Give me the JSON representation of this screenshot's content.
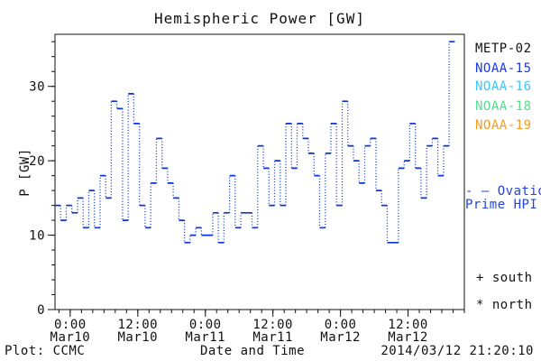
{
  "title": "Hemispheric Power [GW]",
  "footer": {
    "left": "Plot: CCMC",
    "center": "Date and Time",
    "right": "2014/03/12 21:20:10"
  },
  "legend": {
    "satellites": [
      {
        "label": "METP-02",
        "color": "#111111"
      },
      {
        "label": "NOAA-15",
        "color": "#1c3ae8"
      },
      {
        "label": "NOAA-16",
        "color": "#3ec6fa"
      },
      {
        "label": "NOAA-18",
        "color": "#58dd90"
      },
      {
        "label": "NOAA-19",
        "color": "#f59b1e"
      }
    ],
    "model": {
      "dash": "- —",
      "line1": "Ovation",
      "line2": "Prime HPI",
      "color": "#2244e0"
    },
    "markers": [
      {
        "symbol": "+",
        "label": "south"
      },
      {
        "symbol": "*",
        "label": "north"
      }
    ]
  },
  "chart_data": {
    "type": "line",
    "subtype": "step",
    "title": "Hemispheric Power [GW]",
    "xlabel": "Date and Time",
    "ylabel": "P [GW]",
    "ylim": [
      0,
      37
    ],
    "y_major_ticks": [
      0,
      10,
      20,
      30
    ],
    "y_minor_step": 2,
    "x_unit": "hours from 2014-03-10 00:00",
    "xlim": [
      -2.7,
      70
    ],
    "x_major_ticks": [
      {
        "hour": 0,
        "time": "0:00",
        "date": "Mar10"
      },
      {
        "hour": 12,
        "time": "12:00",
        "date": "Mar10"
      },
      {
        "hour": 24,
        "time": "0:00",
        "date": "Mar11"
      },
      {
        "hour": 36,
        "time": "12:00",
        "date": "Mar11"
      },
      {
        "hour": 48,
        "time": "0:00",
        "date": "Mar12"
      },
      {
        "hour": 60,
        "time": "12:00",
        "date": "Mar12"
      }
    ],
    "x_minor_step_hours": 2,
    "grid": false,
    "legend_position": "right",
    "axis_color": "#111111",
    "series": [
      {
        "name": "Ovation Prime HPI",
        "color": "#0a34d4",
        "step_start_hour": -2.7,
        "step_hours": 1,
        "values": [
          14,
          12,
          14,
          13,
          15,
          11,
          16,
          11,
          18,
          15,
          28,
          27,
          12,
          29,
          25,
          14,
          11,
          17,
          23,
          19,
          17,
          15,
          12,
          9,
          10,
          11,
          10,
          10,
          13,
          9,
          13,
          18,
          11,
          13,
          13,
          11,
          22,
          19,
          14,
          20,
          14,
          25,
          19,
          25,
          23,
          21,
          18,
          11,
          21,
          25,
          14,
          28,
          22,
          20,
          17,
          22,
          23,
          16,
          14,
          9,
          9,
          19,
          20,
          25,
          19,
          15,
          22,
          23,
          18,
          22,
          36
        ]
      }
    ]
  }
}
